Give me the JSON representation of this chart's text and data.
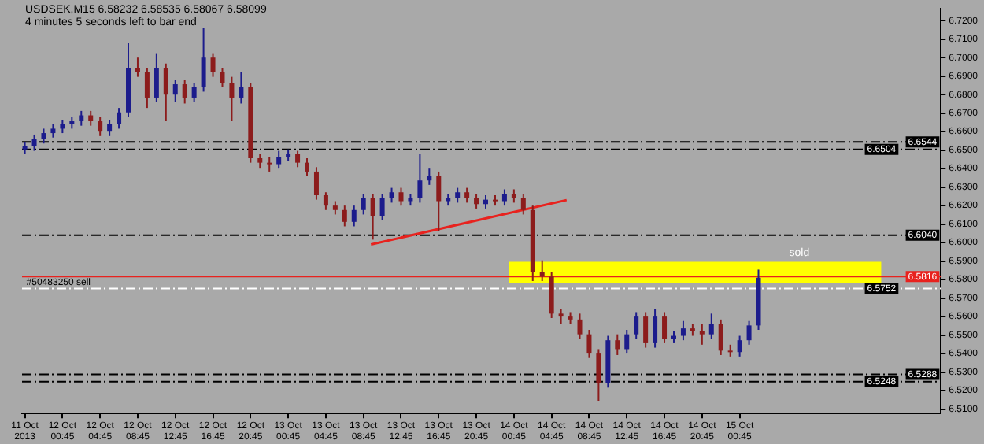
{
  "chart_data": {
    "type": "candlestick",
    "title": "USDSEK,M15  6.58232 6.58535 6.58067 6.58099",
    "annotations": [
      "4 minutes 5 seconds left to bar end",
      {
        "text": "#50483250 sell",
        "x": "2013-10-11T20:45",
        "y": 6.5752
      }
    ],
    "colors": [
      "#1c1c8c",
      "#1c1c8c",
      "#1c1c8c",
      "#1c1c8c",
      "#1c1c8c",
      "#1c1c8c",
      "#1c1c8c",
      "#8c1c1c",
      "#8c1c1c",
      "#1c1c8c",
      "#1c1c8c",
      "#1c1c8c",
      "#8c1c1c",
      "#8c1c1c",
      "#1c1c8c",
      "#8c1c1c",
      "#1c1c8c",
      "#8c1c1c",
      "#1c1c8c",
      "#1c1c8c",
      "#8c1c1c",
      "#8c1c1c",
      "#8c1c1c",
      "#1c1c8c",
      "#8c1c1c",
      "#8c1c1c",
      "#8c1c1c",
      "#1c1c8c",
      "#1c1c8c",
      "#8c1c1c",
      "#8c1c1c",
      "#8c1c1c",
      "#8c1c1c",
      "#8c1c1c",
      "#8c1c1c",
      "#1c1c8c",
      "#1c1c8c",
      "#8c1c1c",
      "#1c1c8c",
      "#1c1c8c",
      "#8c1c1c",
      "#1c1c8c",
      "#1c1c8c",
      "#1c1c8c",
      "#8c1c1c",
      "#1c1c8c",
      "#1c1c8c",
      "#8c1c1c",
      "#8c1c1c",
      "#1c1c8c",
      "#8c1c1c",
      "#1c1c8c",
      "#8c1c1c",
      "#8c1c1c",
      "#8c1c1c",
      "#8c1c1c",
      "#8c1c1c",
      "#8c1c1c",
      "#8c1c1c",
      "#8c1c1c",
      "#8c1c1c",
      "#8c1c1c",
      "#1c1c8c",
      "#8c1c1c",
      "#1c1c8c",
      "#1c1c8c",
      "#8c1c1c",
      "#1c1c8c",
      "#8c1c1c",
      "#1c1c8c",
      "#1c1c8c",
      "#8c1c1c",
      "#8c1c1c",
      "#1c1c8c",
      "#8c1c1c",
      "#8c1c1c",
      "#1c1c8c",
      "#1c1c8c",
      "#1c1c8c"
    ],
    "x": [
      "2013-10-11T20:45",
      "2013-10-11T21:45",
      "2013-10-11T22:45",
      "2013-10-11T23:45",
      "2013-10-12T00:45",
      "2013-10-12T01:45",
      "2013-10-12T02:45",
      "2013-10-12T03:45",
      "2013-10-12T04:45",
      "2013-10-12T05:45",
      "2013-10-12T06:45",
      "2013-10-12T07:45",
      "2013-10-12T08:45",
      "2013-10-12T09:45",
      "2013-10-12T10:45",
      "2013-10-12T11:45",
      "2013-10-12T12:45",
      "2013-10-12T13:45",
      "2013-10-12T14:45",
      "2013-10-12T15:45",
      "2013-10-12T16:45",
      "2013-10-12T17:45",
      "2013-10-12T18:45",
      "2013-10-12T19:45",
      "2013-10-12T20:45",
      "2013-10-12T21:45",
      "2013-10-12T22:45",
      "2013-10-12T23:45",
      "2013-10-13T00:45",
      "2013-10-13T01:45",
      "2013-10-13T02:45",
      "2013-10-13T03:45",
      "2013-10-13T04:45",
      "2013-10-13T05:45",
      "2013-10-13T06:45",
      "2013-10-13T07:45",
      "2013-10-13T08:45",
      "2013-10-13T09:45",
      "2013-10-13T10:45",
      "2013-10-13T11:45",
      "2013-10-13T12:45",
      "2013-10-13T13:45",
      "2013-10-13T14:45",
      "2013-10-13T15:45",
      "2013-10-13T16:45",
      "2013-10-13T17:45",
      "2013-10-13T18:45",
      "2013-10-13T19:45",
      "2013-10-13T20:45",
      "2013-10-13T21:45",
      "2013-10-13T22:45",
      "2013-10-13T23:45",
      "2013-10-14T00:45",
      "2013-10-14T01:45",
      "2013-10-14T02:45",
      "2013-10-14T03:45",
      "2013-10-14T04:45",
      "2013-10-14T05:45",
      "2013-10-14T06:45",
      "2013-10-14T07:45",
      "2013-10-14T08:45",
      "2013-10-14T09:45",
      "2013-10-14T10:45",
      "2013-10-14T11:45",
      "2013-10-14T12:45",
      "2013-10-14T13:45",
      "2013-10-14T14:45",
      "2013-10-14T15:45",
      "2013-10-14T16:45",
      "2013-10-14T17:45",
      "2013-10-14T18:45",
      "2013-10-14T19:45",
      "2013-10-14T20:45",
      "2013-10-14T21:45",
      "2013-10-14T22:45",
      "2013-10-14T23:45",
      "2013-10-15T00:45",
      "2013-10-15T01:45",
      "2013-10-15T02:45"
    ],
    "ohlc": [
      [
        6.6504,
        6.6544,
        6.648,
        6.652
      ],
      [
        6.652,
        6.6584,
        6.6496,
        6.656
      ],
      [
        6.656,
        6.6616,
        6.6536,
        6.6592
      ],
      [
        6.6592,
        6.664,
        6.6568,
        6.6616
      ],
      [
        6.6616,
        6.6664,
        6.6592,
        6.664
      ],
      [
        6.664,
        6.668,
        6.6616,
        6.6656
      ],
      [
        6.6656,
        6.6712,
        6.6632,
        6.6688
      ],
      [
        6.6688,
        6.6712,
        6.6632,
        6.6656
      ],
      [
        6.6656,
        6.668,
        6.6576,
        6.66
      ],
      [
        6.66,
        6.6664,
        6.6576,
        6.664
      ],
      [
        6.664,
        6.6728,
        6.6616,
        6.6704
      ],
      [
        6.6704,
        6.708,
        6.668,
        6.6944
      ],
      [
        6.6944,
        6.7,
        6.6896,
        6.692
      ],
      [
        6.692,
        6.6944,
        6.6728,
        6.6784
      ],
      [
        6.6784,
        6.7024,
        6.676,
        6.6944
      ],
      [
        6.6944,
        6.6968,
        6.6656,
        6.68
      ],
      [
        6.68,
        6.688,
        6.676,
        6.6856
      ],
      [
        6.6856,
        6.688,
        6.6752,
        6.6784
      ],
      [
        6.6784,
        6.6864,
        6.676,
        6.684
      ],
      [
        6.684,
        6.716,
        6.6816,
        6.7
      ],
      [
        6.7,
        6.7024,
        6.6896,
        6.692
      ],
      [
        6.692,
        6.6944,
        6.684,
        6.6864
      ],
      [
        6.6864,
        6.6896,
        6.6656,
        6.6784
      ],
      [
        6.6784,
        6.692,
        6.6752,
        6.684
      ],
      [
        6.684,
        6.6864,
        6.6432,
        6.6456
      ],
      [
        6.6456,
        6.648,
        6.64,
        6.6432
      ],
      [
        6.6432,
        6.6464,
        6.6384,
        6.6424
      ],
      [
        6.6424,
        6.6496,
        6.64,
        6.6464
      ],
      [
        6.6464,
        6.6504,
        6.644,
        6.648
      ],
      [
        6.648,
        6.6496,
        6.6408,
        6.6432
      ],
      [
        6.6432,
        6.6456,
        6.636,
        6.6384
      ],
      [
        6.6384,
        6.6408,
        6.6232,
        6.6256
      ],
      [
        6.6256,
        6.6272,
        6.6176,
        6.62
      ],
      [
        6.62,
        6.6224,
        6.6152,
        6.6176
      ],
      [
        6.6176,
        6.62,
        6.6088,
        6.6112
      ],
      [
        6.6112,
        6.62,
        6.6088,
        6.6176
      ],
      [
        6.6176,
        6.6264,
        6.6152,
        6.624
      ],
      [
        6.624,
        6.6264,
        6.6016,
        6.6144
      ],
      [
        6.6144,
        6.6264,
        6.612,
        6.624
      ],
      [
        6.624,
        6.6296,
        6.6216,
        6.6272
      ],
      [
        6.6272,
        6.6296,
        6.62,
        6.6224
      ],
      [
        6.6224,
        6.6264,
        6.62,
        6.624
      ],
      [
        6.624,
        6.648,
        6.6216,
        6.6336
      ],
      [
        6.6336,
        6.64,
        6.6312,
        6.636
      ],
      [
        6.636,
        6.6384,
        6.6064,
        6.6224
      ],
      [
        6.6224,
        6.6264,
        6.62,
        6.624
      ],
      [
        6.624,
        6.6296,
        6.6216,
        6.6272
      ],
      [
        6.6272,
        6.6296,
        6.6216,
        6.624
      ],
      [
        6.624,
        6.6264,
        6.6184,
        6.6208
      ],
      [
        6.6208,
        6.6256,
        6.6184,
        6.6232
      ],
      [
        6.6232,
        6.6256,
        6.62,
        6.6224
      ],
      [
        6.6224,
        6.6288,
        6.62,
        6.6264
      ],
      [
        6.6264,
        6.6288,
        6.6216,
        6.624
      ],
      [
        6.624,
        6.6264,
        6.6152,
        6.6176
      ],
      [
        6.6176,
        6.62,
        6.5792,
        6.584
      ],
      [
        6.584,
        6.5904,
        6.5792,
        6.5816
      ],
      [
        6.5816,
        6.584,
        6.5592,
        6.5616
      ],
      [
        6.5616,
        6.564,
        6.556,
        6.56
      ],
      [
        6.56,
        6.5624,
        6.556,
        6.5584
      ],
      [
        6.5584,
        6.5616,
        6.548,
        6.5504
      ],
      [
        6.5504,
        6.5528,
        6.5376,
        6.54
      ],
      [
        6.54,
        6.5424,
        6.5144,
        6.524
      ],
      [
        6.524,
        6.5496,
        6.5216,
        6.5472
      ],
      [
        6.5472,
        6.5504,
        6.5392,
        6.5424
      ],
      [
        6.5424,
        6.5528,
        6.54,
        6.5504
      ],
      [
        6.5504,
        6.5624,
        6.548,
        6.56
      ],
      [
        6.56,
        6.5624,
        6.5432,
        6.5456
      ],
      [
        6.5456,
        6.564,
        6.5432,
        6.56
      ],
      [
        6.56,
        6.5624,
        6.5456,
        6.548
      ],
      [
        6.548,
        6.552,
        6.5456,
        6.5496
      ],
      [
        6.5496,
        6.5576,
        6.5472,
        6.5536
      ],
      [
        6.5536,
        6.556,
        6.5496,
        6.552
      ],
      [
        6.552,
        6.556,
        6.5448,
        6.5504
      ],
      [
        6.5504,
        6.5616,
        6.548,
        6.556
      ],
      [
        6.556,
        6.5584,
        6.5392,
        6.5416
      ],
      [
        6.5416,
        6.5448,
        6.5384,
        6.5408
      ],
      [
        6.5408,
        6.5496,
        6.5384,
        6.5472
      ],
      [
        6.5472,
        6.5576,
        6.5448,
        6.5552
      ],
      [
        6.5552,
        6.5854,
        6.5528,
        6.581
      ]
    ],
    "series": [
      {
        "type": "line",
        "color": "#e8221e",
        "x": [
          "2013-10-13T09:33",
          "2013-10-14T06:21"
        ],
        "values": [
          6.599,
          6.623
        ]
      }
    ],
    "marker": "none",
    "ref_lines": [
      {
        "axis": "y",
        "value": 6.6544,
        "color": "#000000",
        "line_style": "dashed",
        "label": "6.6544"
      },
      {
        "axis": "y",
        "value": 6.6504,
        "color": "#000000",
        "line_style": "dashed",
        "label": "6.6504"
      },
      {
        "axis": "y",
        "value": 6.604,
        "color": "#000000",
        "line_style": "dashed",
        "label": "6.6040"
      },
      {
        "axis": "y",
        "value": 6.5816,
        "color": "#e8221e",
        "line_style": "solid",
        "label": "6.5816"
      },
      {
        "axis": "y",
        "value": 6.5752,
        "color": "#ffffff",
        "line_style": "dashed",
        "label": "6.5752"
      },
      {
        "axis": "y",
        "value": 6.5288,
        "color": "#000000",
        "line_style": "dashed",
        "label": "6.5288"
      },
      {
        "axis": "y",
        "value": 6.5248,
        "color": "#000000",
        "line_style": "dashed",
        "label": "6.5248"
      }
    ],
    "bands": [
      {
        "axis": "y",
        "from": 6.5784,
        "to": 6.5896,
        "label": "sold",
        "color": "#ffff00"
      }
    ],
    "xlim": [
      "2013-10-11T20:27",
      "2013-10-15T22:09"
    ],
    "xticks": [
      {
        "value": "2013-10-11T20:45",
        "label": "11 Oct 2013"
      },
      {
        "value": "2013-10-12T00:45",
        "label": "12 Oct 00:45"
      },
      {
        "value": "2013-10-12T04:45",
        "label": "12 Oct 04:45"
      },
      {
        "value": "2013-10-12T08:45",
        "label": "12 Oct 08:45"
      },
      {
        "value": "2013-10-12T12:45",
        "label": "12 Oct 12:45"
      },
      {
        "value": "2013-10-12T16:45",
        "label": "12 Oct 16:45"
      },
      {
        "value": "2013-10-12T20:45",
        "label": "12 Oct 20:45"
      },
      {
        "value": "2013-10-13T00:45",
        "label": "13 Oct 00:45"
      },
      {
        "value": "2013-10-13T04:45",
        "label": "13 Oct 04:45"
      },
      {
        "value": "2013-10-13T08:45",
        "label": "13 Oct 08:45"
      },
      {
        "value": "2013-10-13T12:45",
        "label": "13 Oct 12:45"
      },
      {
        "value": "2013-10-13T16:45",
        "label": "13 Oct 16:45"
      },
      {
        "value": "2013-10-13T20:45",
        "label": "13 Oct 20:45"
      },
      {
        "value": "2013-10-14T00:45",
        "label": "14 Oct 00:45"
      },
      {
        "value": "2013-10-14T04:45",
        "label": "14 Oct 04:45"
      },
      {
        "value": "2013-10-14T08:45",
        "label": "14 Oct 08:45"
      },
      {
        "value": "2013-10-14T12:45",
        "label": "14 Oct 12:45"
      },
      {
        "value": "2013-10-14T16:45",
        "label": "14 Oct 16:45"
      },
      {
        "value": "2013-10-14T20:45",
        "label": "14 Oct 20:45"
      },
      {
        "value": "2013-10-15T00:45",
        "label": "15 Oct 00:45"
      }
    ],
    "ylim": [
      6.5076,
      6.7264
    ],
    "yticks": [
      {
        "value": 6.51,
        "label": "6.5100"
      },
      {
        "value": 6.52,
        "label": "6.5200"
      },
      {
        "value": 6.53,
        "label": "6.5300"
      },
      {
        "value": 6.54,
        "label": "6.5400"
      },
      {
        "value": 6.55,
        "label": "6.5500"
      },
      {
        "value": 6.56,
        "label": "6.5600"
      },
      {
        "value": 6.57,
        "label": "6.5700"
      },
      {
        "value": 6.58,
        "label": "6.5800"
      },
      {
        "value": 6.59,
        "label": "6.5900"
      },
      {
        "value": 6.6,
        "label": "6.6000"
      },
      {
        "value": 6.61,
        "label": "6.6100"
      },
      {
        "value": 6.62,
        "label": "6.6200"
      },
      {
        "value": 6.63,
        "label": "6.6300"
      },
      {
        "value": 6.64,
        "label": "6.6400"
      },
      {
        "value": 6.65,
        "label": "6.6500"
      },
      {
        "value": 6.66,
        "label": "6.6600"
      },
      {
        "value": 6.67,
        "label": "6.6700"
      },
      {
        "value": 6.68,
        "label": "6.6800"
      },
      {
        "value": 6.69,
        "label": "6.6900"
      },
      {
        "value": 6.7,
        "label": "6.7000"
      },
      {
        "value": 6.71,
        "label": "6.7100"
      },
      {
        "value": 6.72,
        "label": "6.7200"
      }
    ]
  }
}
